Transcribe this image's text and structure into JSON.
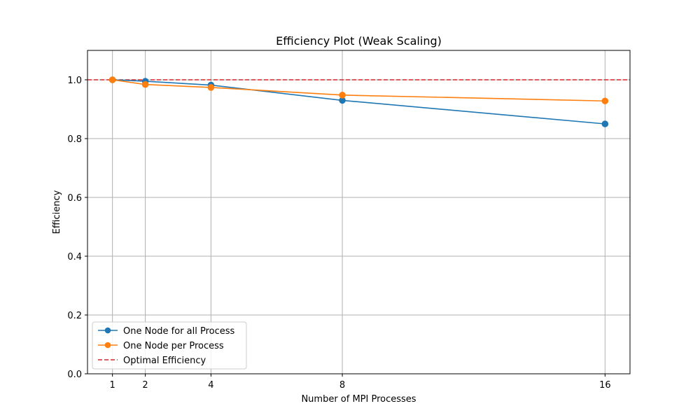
{
  "chart_data": {
    "type": "line",
    "title": "Efficiency Plot (Weak Scaling)",
    "xlabel": "Number of MPI Processes",
    "ylabel": "Efficiency",
    "x": [
      1,
      2,
      4,
      8,
      16
    ],
    "xticks": [
      "1",
      "2",
      "4",
      "8",
      "16"
    ],
    "xlim": [
      0.24,
      16.76
    ],
    "yticks": [
      "0.0",
      "0.2",
      "0.4",
      "0.6",
      "0.8",
      "1.0"
    ],
    "ylim": [
      0,
      1.1
    ],
    "grid": true,
    "legend_position": "lower-left",
    "series": [
      {
        "name": "One Node for all Process",
        "color": "#1f77b4",
        "style": "solid",
        "marker": "circle",
        "values": [
          1.0,
          0.995,
          0.982,
          0.93,
          0.85
        ]
      },
      {
        "name": "One Node per Process",
        "color": "#ff7f0e",
        "style": "solid",
        "marker": "circle",
        "values": [
          1.0,
          0.984,
          0.974,
          0.948,
          0.928
        ]
      },
      {
        "name": "Optimal Efficiency",
        "color": "#d62728",
        "style": "dashed",
        "marker": "none",
        "constant": 1.0
      }
    ]
  }
}
